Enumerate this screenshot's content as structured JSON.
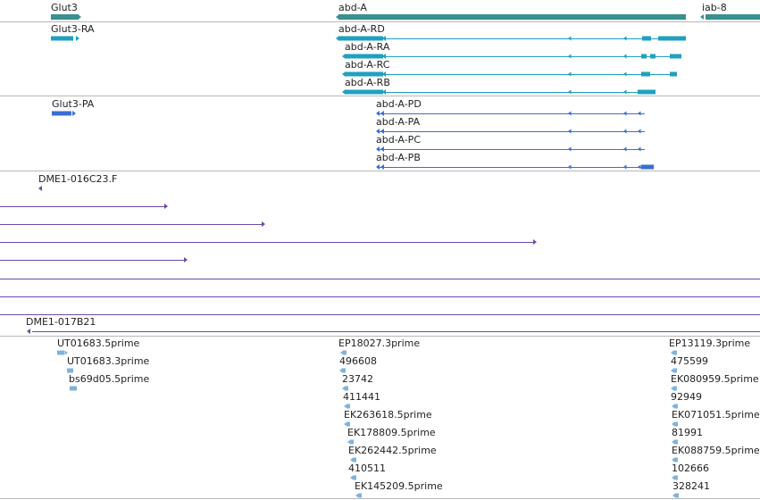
{
  "colors": {
    "background": "#ffffff",
    "divider": "#b8b8b8",
    "gene": "#3a8f8f",
    "transcript": "#1fa0be",
    "protein": "#3a6fd2",
    "bac": "#6a4aa6",
    "est": "#7fb3dc",
    "text": "#222222"
  },
  "tracks": {
    "genes": {
      "items": [
        {
          "label": "Glut3",
          "kind": "gene"
        },
        {
          "label": "abd-A",
          "kind": "gene"
        },
        {
          "label": "iab-8",
          "kind": "gene"
        }
      ]
    },
    "transcripts": {
      "items": [
        {
          "label": "Glut3-RA",
          "kind": "transcript"
        },
        {
          "label": "abd-A-RD",
          "kind": "transcript"
        },
        {
          "label": "abd-A-RA",
          "kind": "transcript"
        },
        {
          "label": "abd-A-RC",
          "kind": "transcript"
        },
        {
          "label": "abd-A-RB",
          "kind": "transcript"
        }
      ]
    },
    "proteins": {
      "items": [
        {
          "label": "Glut3-PA",
          "kind": "protein"
        },
        {
          "label": "abd-A-PD",
          "kind": "protein"
        },
        {
          "label": "abd-A-PA",
          "kind": "protein"
        },
        {
          "label": "abd-A-PC",
          "kind": "protein"
        },
        {
          "label": "abd-A-PB",
          "kind": "protein"
        }
      ]
    },
    "bac_clones": {
      "items": [
        {
          "label": "DME1-016C23.F",
          "kind": "bac"
        },
        {
          "label": "DME1-017B21",
          "kind": "bac"
        }
      ]
    },
    "ests": {
      "items": [
        {
          "label": "UT01683.5prime"
        },
        {
          "label": "UT01683.3prime"
        },
        {
          "label": "bs69d05.5prime"
        },
        {
          "label": "EP18027.3prime"
        },
        {
          "label": "496608"
        },
        {
          "label": "23742"
        },
        {
          "label": "411441"
        },
        {
          "label": "EK263618.5prime"
        },
        {
          "label": "EK178809.5prime"
        },
        {
          "label": "EK262442.5prime"
        },
        {
          "label": "410511"
        },
        {
          "label": "EK145209.5prime"
        },
        {
          "label": "EP13119.3prime"
        },
        {
          "label": "475599"
        },
        {
          "label": "EK080959.5prime"
        },
        {
          "label": "92949"
        },
        {
          "label": "EK071051.5prime"
        },
        {
          "label": "81991"
        },
        {
          "label": "EK088759.5prime"
        },
        {
          "label": "102666"
        },
        {
          "label": "328241"
        }
      ]
    }
  }
}
